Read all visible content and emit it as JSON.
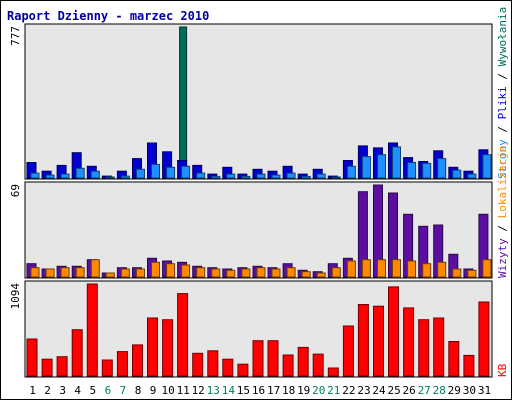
{
  "chart_data": {
    "type": "bar",
    "title": "Raport Dzienny -  marzec 2010",
    "categories": [
      "1",
      "2",
      "3",
      "4",
      "5",
      "6",
      "7",
      "8",
      "9",
      "10",
      "11",
      "12",
      "13",
      "14",
      "15",
      "16",
      "17",
      "18",
      "19",
      "20",
      "21",
      "22",
      "23",
      "24",
      "25",
      "26",
      "27",
      "28",
      "29",
      "30",
      "31"
    ],
    "weekend_days": [
      "6",
      "7",
      "13",
      "14",
      "20",
      "21",
      "27",
      "28"
    ],
    "panels": [
      {
        "id": "top",
        "max_label": "777",
        "max": 777,
        "series": [
          {
            "name": "Wywołania",
            "color": "#006e5a",
            "values": [
              null,
              null,
              null,
              null,
              null,
              null,
              null,
              null,
              null,
              null,
              777,
              null,
              null,
              null,
              null,
              null,
              null,
              null,
              null,
              null,
              null,
              null,
              null,
              null,
              null,
              null,
              null,
              null,
              null,
              null,
              null
            ]
          },
          {
            "name": "Pliki",
            "color": "#0000d0",
            "values": [
              80,
              35,
              65,
              130,
              60,
              10,
              35,
              100,
              180,
              135,
              90,
              65,
              20,
              55,
              20,
              45,
              35,
              60,
              20,
              45,
              10,
              90,
              165,
              155,
              180,
              105,
              85,
              140,
              55,
              35,
              145
            ]
          },
          {
            "name": "Strony",
            "color": "#1e90ff",
            "values": [
              25,
              15,
              20,
              50,
              35,
              5,
              10,
              45,
              70,
              55,
              60,
              25,
              8,
              20,
              8,
              20,
              15,
              25,
              8,
              20,
              5,
              60,
              110,
              120,
              160,
              80,
              75,
              100,
              40,
              20,
              120
            ]
          }
        ],
        "legend": [
          "Wywołania",
          "/",
          "Pliki",
          "/",
          "Strony"
        ]
      },
      {
        "id": "mid",
        "max_label": "69",
        "max": 69,
        "series": [
          {
            "name": "Wizyty",
            "color": "#5b0fa0",
            "values": [
              10,
              6,
              8,
              8,
              13,
              3,
              7,
              7,
              14,
              12,
              11,
              8,
              7,
              6,
              7,
              8,
              7,
              10,
              5,
              4,
              10,
              14,
              64,
              69,
              63,
              47,
              38,
              39,
              17,
              6,
              47
            ]
          },
          {
            "name": "Lokalizacje",
            "color": "#ff8a00",
            "values": [
              7,
              6,
              7,
              7,
              13,
              3,
              6,
              6,
              11,
              10,
              9,
              7,
              6,
              5,
              6,
              7,
              6,
              7,
              4,
              3,
              7,
              12,
              13,
              13,
              13,
              12,
              10,
              11,
              6,
              5,
              13
            ]
          }
        ],
        "legend": [
          "Lokalizacje",
          "/",
          "Wizyty"
        ]
      },
      {
        "id": "bot",
        "max_label": "1094",
        "max": 1094,
        "series": [
          {
            "name": "KB",
            "color": "#ff0000",
            "values": [
              440,
              200,
              230,
              550,
              1094,
              190,
              290,
              370,
              690,
              670,
              980,
              270,
              300,
              200,
              140,
              420,
              420,
              250,
              340,
              260,
              95,
              595,
              850,
              830,
              1060,
              810,
              670,
              690,
              410,
              245,
              880
            ]
          }
        ],
        "legend": [
          "KB"
        ]
      }
    ]
  }
}
